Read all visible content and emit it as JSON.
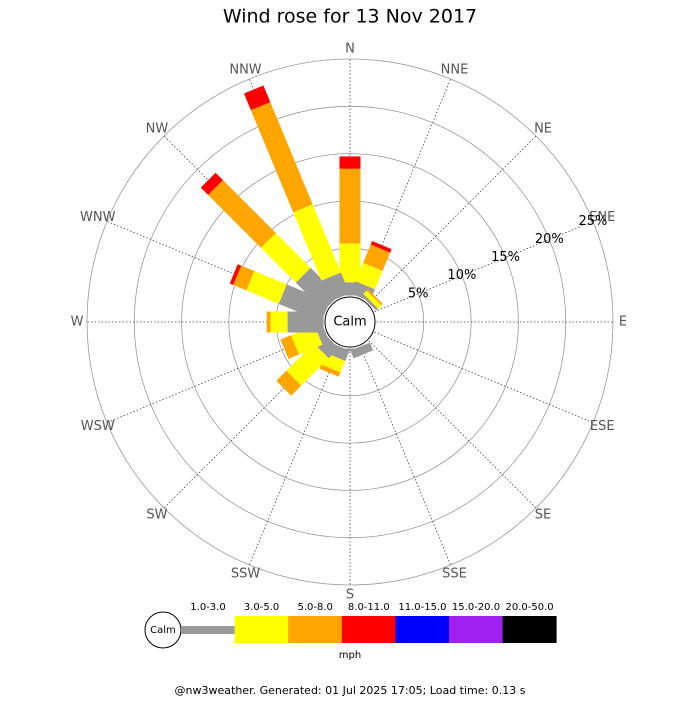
{
  "chart_data": {
    "type": "windrose",
    "title": "Wind rose for 13 Nov 2017",
    "calm_label": "Calm",
    "unit_label": "mph",
    "footer": "@nw3weather. Generated: 01 Jul 2025 17:05; Load time: 0.13 s",
    "categories": [
      "N",
      "NNE",
      "NE",
      "ENE",
      "E",
      "ESE",
      "SE",
      "SSE",
      "S",
      "SSW",
      "SW",
      "WSW",
      "W",
      "WNW",
      "NW",
      "NNW"
    ],
    "rlim": [
      0,
      25
    ],
    "rticks": [
      {
        "value": 5,
        "label": "5%"
      },
      {
        "value": 10,
        "label": "10%"
      },
      {
        "value": 15,
        "label": "15%"
      },
      {
        "value": 20,
        "label": "20%"
      },
      {
        "value": 25,
        "label": "25%"
      }
    ],
    "series": [
      {
        "name": "1.0-3.0",
        "color": "#999999",
        "values": [
          1.4,
          1.4,
          0.3,
          0,
          0,
          0,
          0,
          0.9,
          0.3,
          1.2,
          1.5,
          0.8,
          3.8,
          4.9,
          4.2,
          2.4
        ]
      },
      {
        "name": "3.0-5.0",
        "color": "#ffff00",
        "values": [
          4.1,
          2.1,
          0.5,
          0,
          0,
          0,
          0,
          0,
          0,
          1.3,
          4.1,
          2.7,
          1.8,
          3.7,
          5.2,
          7.8
        ]
      },
      {
        "name": "5.0-8.0",
        "color": "#ffa500",
        "values": [
          7.9,
          2.1,
          0.2,
          0,
          0,
          0,
          0,
          0,
          0,
          0.5,
          1.5,
          1.2,
          0.4,
          1.5,
          7.9,
          11.7
        ]
      },
      {
        "name": "8.0-11.0",
        "color": "#ff0000",
        "values": [
          1.3,
          0.4,
          0,
          0,
          0,
          0,
          0,
          0,
          0,
          0,
          0,
          0,
          0,
          0.4,
          1.1,
          1.9
        ]
      },
      {
        "name": "11.0-15.0",
        "color": "#0000ff",
        "values": [
          0,
          0,
          0,
          0,
          0,
          0,
          0,
          0,
          0,
          0,
          0,
          0,
          0,
          0,
          0,
          0
        ]
      },
      {
        "name": "15.0-20.0",
        "color": "#a020f0",
        "values": [
          0,
          0,
          0,
          0,
          0,
          0,
          0,
          0,
          0,
          0,
          0,
          0,
          0,
          0,
          0,
          0
        ]
      },
      {
        "name": "20.0-50.0",
        "color": "#000000",
        "values": [
          0,
          0,
          0,
          0,
          0,
          0,
          0,
          0,
          0,
          0,
          0,
          0,
          0,
          0,
          0,
          0
        ]
      }
    ]
  }
}
